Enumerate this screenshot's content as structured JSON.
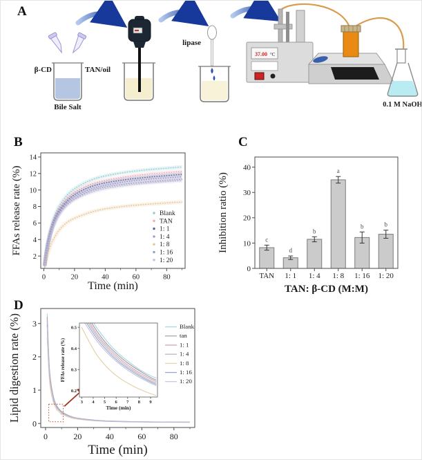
{
  "figure": {
    "panels": {
      "a": "A",
      "b": "B",
      "c": "C",
      "d": "D"
    }
  },
  "panel_a": {
    "labels": {
      "beta_cd": "β-CD",
      "tan_oil": "TAN/oil",
      "bile_salt": "Bile Salt",
      "lipase": "lipase",
      "temperature": "37.00",
      "temp_unit": "°C",
      "naoh": "0.1 M NaOH"
    }
  },
  "chart_data": [
    {
      "id": "B",
      "type": "line",
      "title": "",
      "xlabel": "Time (min)",
      "ylabel": "FFAs release rate (%)",
      "xlim": [
        -2,
        92
      ],
      "ylim": [
        0.5,
        14.5
      ],
      "xticks": [
        0,
        20,
        40,
        60,
        80
      ],
      "yticks": [
        2,
        4,
        6,
        8,
        10,
        12,
        14
      ],
      "grid": false,
      "legend_position": "inside-bottom-right",
      "x": [
        0.5,
        1,
        2,
        3,
        5,
        7,
        10,
        15,
        20,
        30,
        40,
        60,
        90
      ],
      "series": [
        {
          "name": "Blank",
          "color": "#8fcdd2",
          "values": [
            0.9,
            1.7,
            3.1,
            4.1,
            5.75,
            6.9,
            8.1,
            9.4,
            10.2,
            11.2,
            11.75,
            12.35,
            12.8
          ]
        },
        {
          "name": "TAN",
          "color": "#e9a9b4",
          "values": [
            0.85,
            1.65,
            2.9,
            4.0,
            5.5,
            6.6,
            7.8,
            9.0,
            9.8,
            10.7,
            11.2,
            11.8,
            12.25
          ]
        },
        {
          "name": "1: 1",
          "color": "#56659c",
          "values": [
            0.85,
            1.6,
            2.8,
            3.8,
            5.3,
            6.4,
            7.5,
            8.7,
            9.5,
            10.4,
            10.9,
            11.45,
            11.9
          ]
        },
        {
          "name": "1: 4",
          "color": "#a893c6",
          "values": [
            0.8,
            1.55,
            2.8,
            3.75,
            5.2,
            6.25,
            7.35,
            8.5,
            9.25,
            10.1,
            10.6,
            11.2,
            11.6
          ]
        },
        {
          "name": "1: 8",
          "color": "#e7c493",
          "values": [
            0.6,
            1.05,
            1.9,
            2.5,
            3.6,
            4.3,
            5.2,
            6.1,
            6.6,
            7.3,
            7.75,
            8.2,
            8.55
          ]
        },
        {
          "name": "1: 16",
          "color": "#8fa0c8",
          "values": [
            0.8,
            1.5,
            2.7,
            3.65,
            5.1,
            6.1,
            7.2,
            8.3,
            9.0,
            9.9,
            10.4,
            10.9,
            11.3
          ]
        },
        {
          "name": "1: 20",
          "color": "#c2bad8",
          "values": [
            0.75,
            1.5,
            2.65,
            3.6,
            5.0,
            6.0,
            7.05,
            8.2,
            8.9,
            9.7,
            10.2,
            10.75,
            11.15
          ]
        }
      ]
    },
    {
      "id": "C",
      "type": "bar",
      "title": "",
      "xlabel": "TAN: β-CD (M:M)",
      "ylabel": "Inhibition ratio (%)",
      "ylim": [
        0,
        44
      ],
      "yticks": [
        0,
        10,
        20,
        30,
        40
      ],
      "grid": false,
      "categories": [
        "TAN",
        "1: 1",
        "1: 4",
        "1: 8",
        "1: 16",
        "1: 20"
      ],
      "values": [
        8.2,
        4.2,
        11.5,
        35.0,
        12.2,
        13.5
      ],
      "errors": [
        1.0,
        0.7,
        1.0,
        1.3,
        2.2,
        1.6
      ],
      "letters": [
        "c",
        "d",
        "b",
        "a",
        "b",
        "b"
      ],
      "bar_color": "#cbcbcb",
      "bar_stroke": "#7a7a7a"
    },
    {
      "id": "D",
      "type": "line",
      "title": "",
      "xlabel": "Time (min)",
      "ylabel": "Lipid digestion rate (%)",
      "xlim": [
        -3,
        93
      ],
      "ylim": [
        -0.12,
        3.45
      ],
      "xticks": [
        0,
        20,
        40,
        60,
        80
      ],
      "yticks": [
        0,
        1,
        2,
        3
      ],
      "grid": false,
      "legend_position": "top-right-of-inset",
      "x": [
        1,
        2,
        3,
        5,
        7,
        10,
        15,
        20,
        30,
        40,
        60,
        90
      ],
      "series": [
        {
          "name": "Blank",
          "color": "#a9d4e2",
          "values": [
            3.3,
            1.9,
            1.3,
            0.75,
            0.52,
            0.35,
            0.22,
            0.16,
            0.1,
            0.07,
            0.05,
            0.04
          ]
        },
        {
          "name": "tan",
          "color": "#9a9aa8",
          "values": [
            3.2,
            1.84,
            1.26,
            0.73,
            0.5,
            0.34,
            0.213,
            0.155,
            0.097,
            0.068,
            0.049,
            0.039
          ]
        },
        {
          "name": "1: 1",
          "color": "#d9a0ac",
          "values": [
            3.14,
            1.81,
            1.24,
            0.71,
            0.49,
            0.333,
            0.209,
            0.152,
            0.095,
            0.067,
            0.048,
            0.038
          ]
        },
        {
          "name": "1: 4",
          "color": "#b4b4bc",
          "values": [
            3.07,
            1.77,
            1.21,
            0.7,
            0.48,
            0.326,
            0.205,
            0.149,
            0.093,
            0.065,
            0.047,
            0.037
          ]
        },
        {
          "name": "1: 8",
          "color": "#e3cfa2",
          "values": [
            2.57,
            1.48,
            1.01,
            0.585,
            0.406,
            0.273,
            0.172,
            0.125,
            0.078,
            0.055,
            0.039,
            0.031
          ]
        },
        {
          "name": "1: 16",
          "color": "#93a3cc",
          "values": [
            2.97,
            1.71,
            1.17,
            0.675,
            0.468,
            0.315,
            0.198,
            0.144,
            0.09,
            0.063,
            0.045,
            0.036
          ]
        },
        {
          "name": "1: 20",
          "color": "#c6bedd",
          "values": [
            2.9,
            1.67,
            1.14,
            0.66,
            0.458,
            0.308,
            0.194,
            0.141,
            0.088,
            0.062,
            0.044,
            0.035
          ]
        }
      ],
      "annotation": {
        "zoom_box": {
          "x": [
            2,
            11
          ],
          "y": [
            0.05,
            0.58
          ],
          "color": "#c0503a"
        },
        "arrow": {
          "from": [
            13,
            0.62
          ],
          "to": [
            24,
            1.05
          ],
          "color": "#a63224"
        }
      }
    },
    {
      "id": "D_inset",
      "type": "line",
      "title": "",
      "xlabel": "Time (min)",
      "ylabel": "FFAs release rate (%)",
      "xlim": [
        2.8,
        9.6
      ],
      "ylim": [
        0.17,
        0.52
      ],
      "xticks": [
        3,
        4,
        5,
        6,
        7,
        8,
        9
      ],
      "yticks": [
        0.2,
        0.3,
        0.4,
        0.5
      ],
      "grid": false,
      "x": [
        3,
        4,
        5,
        6,
        7,
        8,
        9,
        9.5
      ],
      "series": [
        {
          "name": "Blank",
          "color": "#a9d4e2",
          "values": [
            0.62,
            0.52,
            0.445,
            0.385,
            0.34,
            0.3,
            0.27,
            0.26
          ]
        },
        {
          "name": "tan",
          "color": "#9a9aa8",
          "values": [
            0.6,
            0.505,
            0.43,
            0.375,
            0.33,
            0.295,
            0.262,
            0.25
          ]
        },
        {
          "name": "1: 1",
          "color": "#d9a0ac",
          "values": [
            0.59,
            0.49,
            0.42,
            0.365,
            0.32,
            0.285,
            0.255,
            0.243
          ]
        },
        {
          "name": "1: 4",
          "color": "#b4b4bc",
          "values": [
            0.575,
            0.48,
            0.41,
            0.355,
            0.312,
            0.277,
            0.247,
            0.236
          ]
        },
        {
          "name": "1: 8",
          "color": "#e3cfa2",
          "values": [
            0.5,
            0.39,
            0.32,
            0.27,
            0.235,
            0.207,
            0.186,
            0.177
          ]
        },
        {
          "name": "1: 16",
          "color": "#93a3cc",
          "values": [
            0.56,
            0.468,
            0.4,
            0.346,
            0.305,
            0.27,
            0.241,
            0.23
          ]
        },
        {
          "name": "1: 20",
          "color": "#c6bedd",
          "values": [
            0.545,
            0.455,
            0.39,
            0.338,
            0.297,
            0.263,
            0.235,
            0.224
          ]
        }
      ]
    }
  ]
}
